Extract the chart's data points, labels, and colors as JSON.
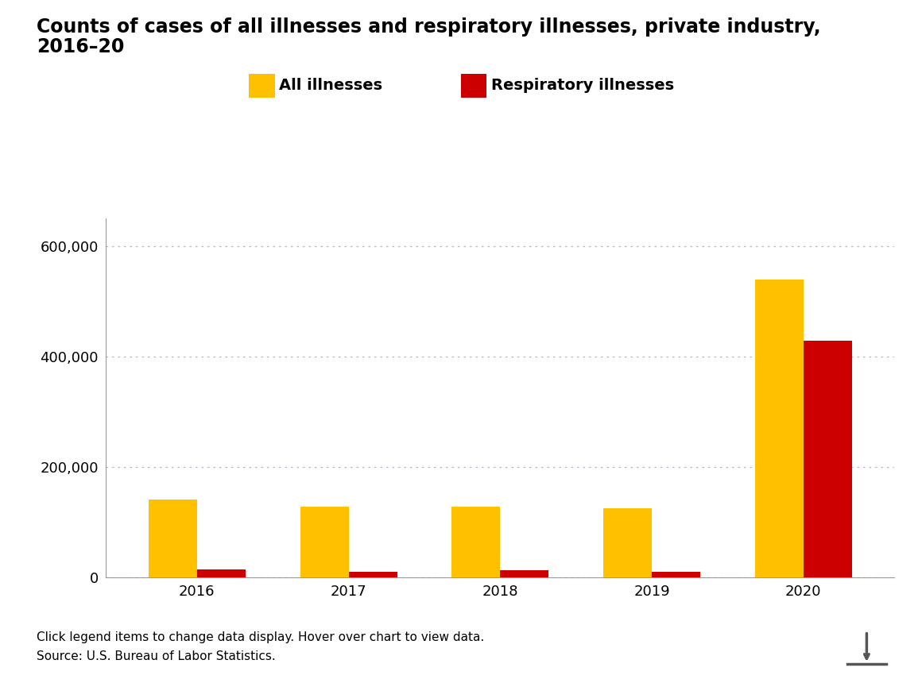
{
  "title_line1": "Counts of cases of all illnesses and respiratory illnesses, private industry,",
  "title_line2": "2016–20",
  "years": [
    "2016",
    "2017",
    "2018",
    "2019",
    "2020"
  ],
  "all_illnesses": [
    140700,
    127200,
    127600,
    124900,
    540000
  ],
  "respiratory_illnesses": [
    14000,
    9000,
    12000,
    9000,
    428700
  ],
  "all_color": "#FFC000",
  "resp_color": "#CC0000",
  "legend_labels": [
    "All illnesses",
    "Respiratory illnesses"
  ],
  "ylim": [
    0,
    650000
  ],
  "yticks": [
    0,
    200000,
    400000,
    600000
  ],
  "ytick_labels": [
    "0",
    "200,000",
    "400,000",
    "600,000"
  ],
  "footer_line1": "Click legend items to change data display. Hover over chart to view data.",
  "footer_line2": "Source: U.S. Bureau of Labor Statistics.",
  "background_color": "#ffffff",
  "grid_color": "#b0b8c8",
  "spine_color": "#999999",
  "bar_width": 0.32,
  "title_fontsize": 17,
  "tick_fontsize": 13,
  "legend_fontsize": 14,
  "footer_fontsize": 11
}
